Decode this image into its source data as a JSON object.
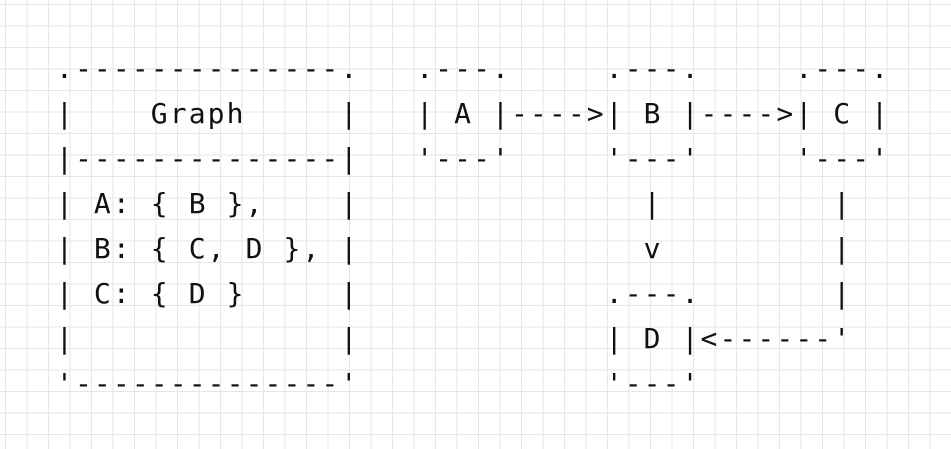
{
  "diagram": {
    "lines": [
      ".--------------.   .---.     .---.     .---.",
      "|    Graph     |   | A |---->| B |---->| C |",
      "|--------------|   '---'     '---'     '---'",
      "| A: { B },    |               |         |",
      "| B: { C, D }, |               v         |",
      "| C: { D }     |             .---.       |",
      "|              |             | D |<------'",
      "'--------------'             '---'"
    ]
  }
}
